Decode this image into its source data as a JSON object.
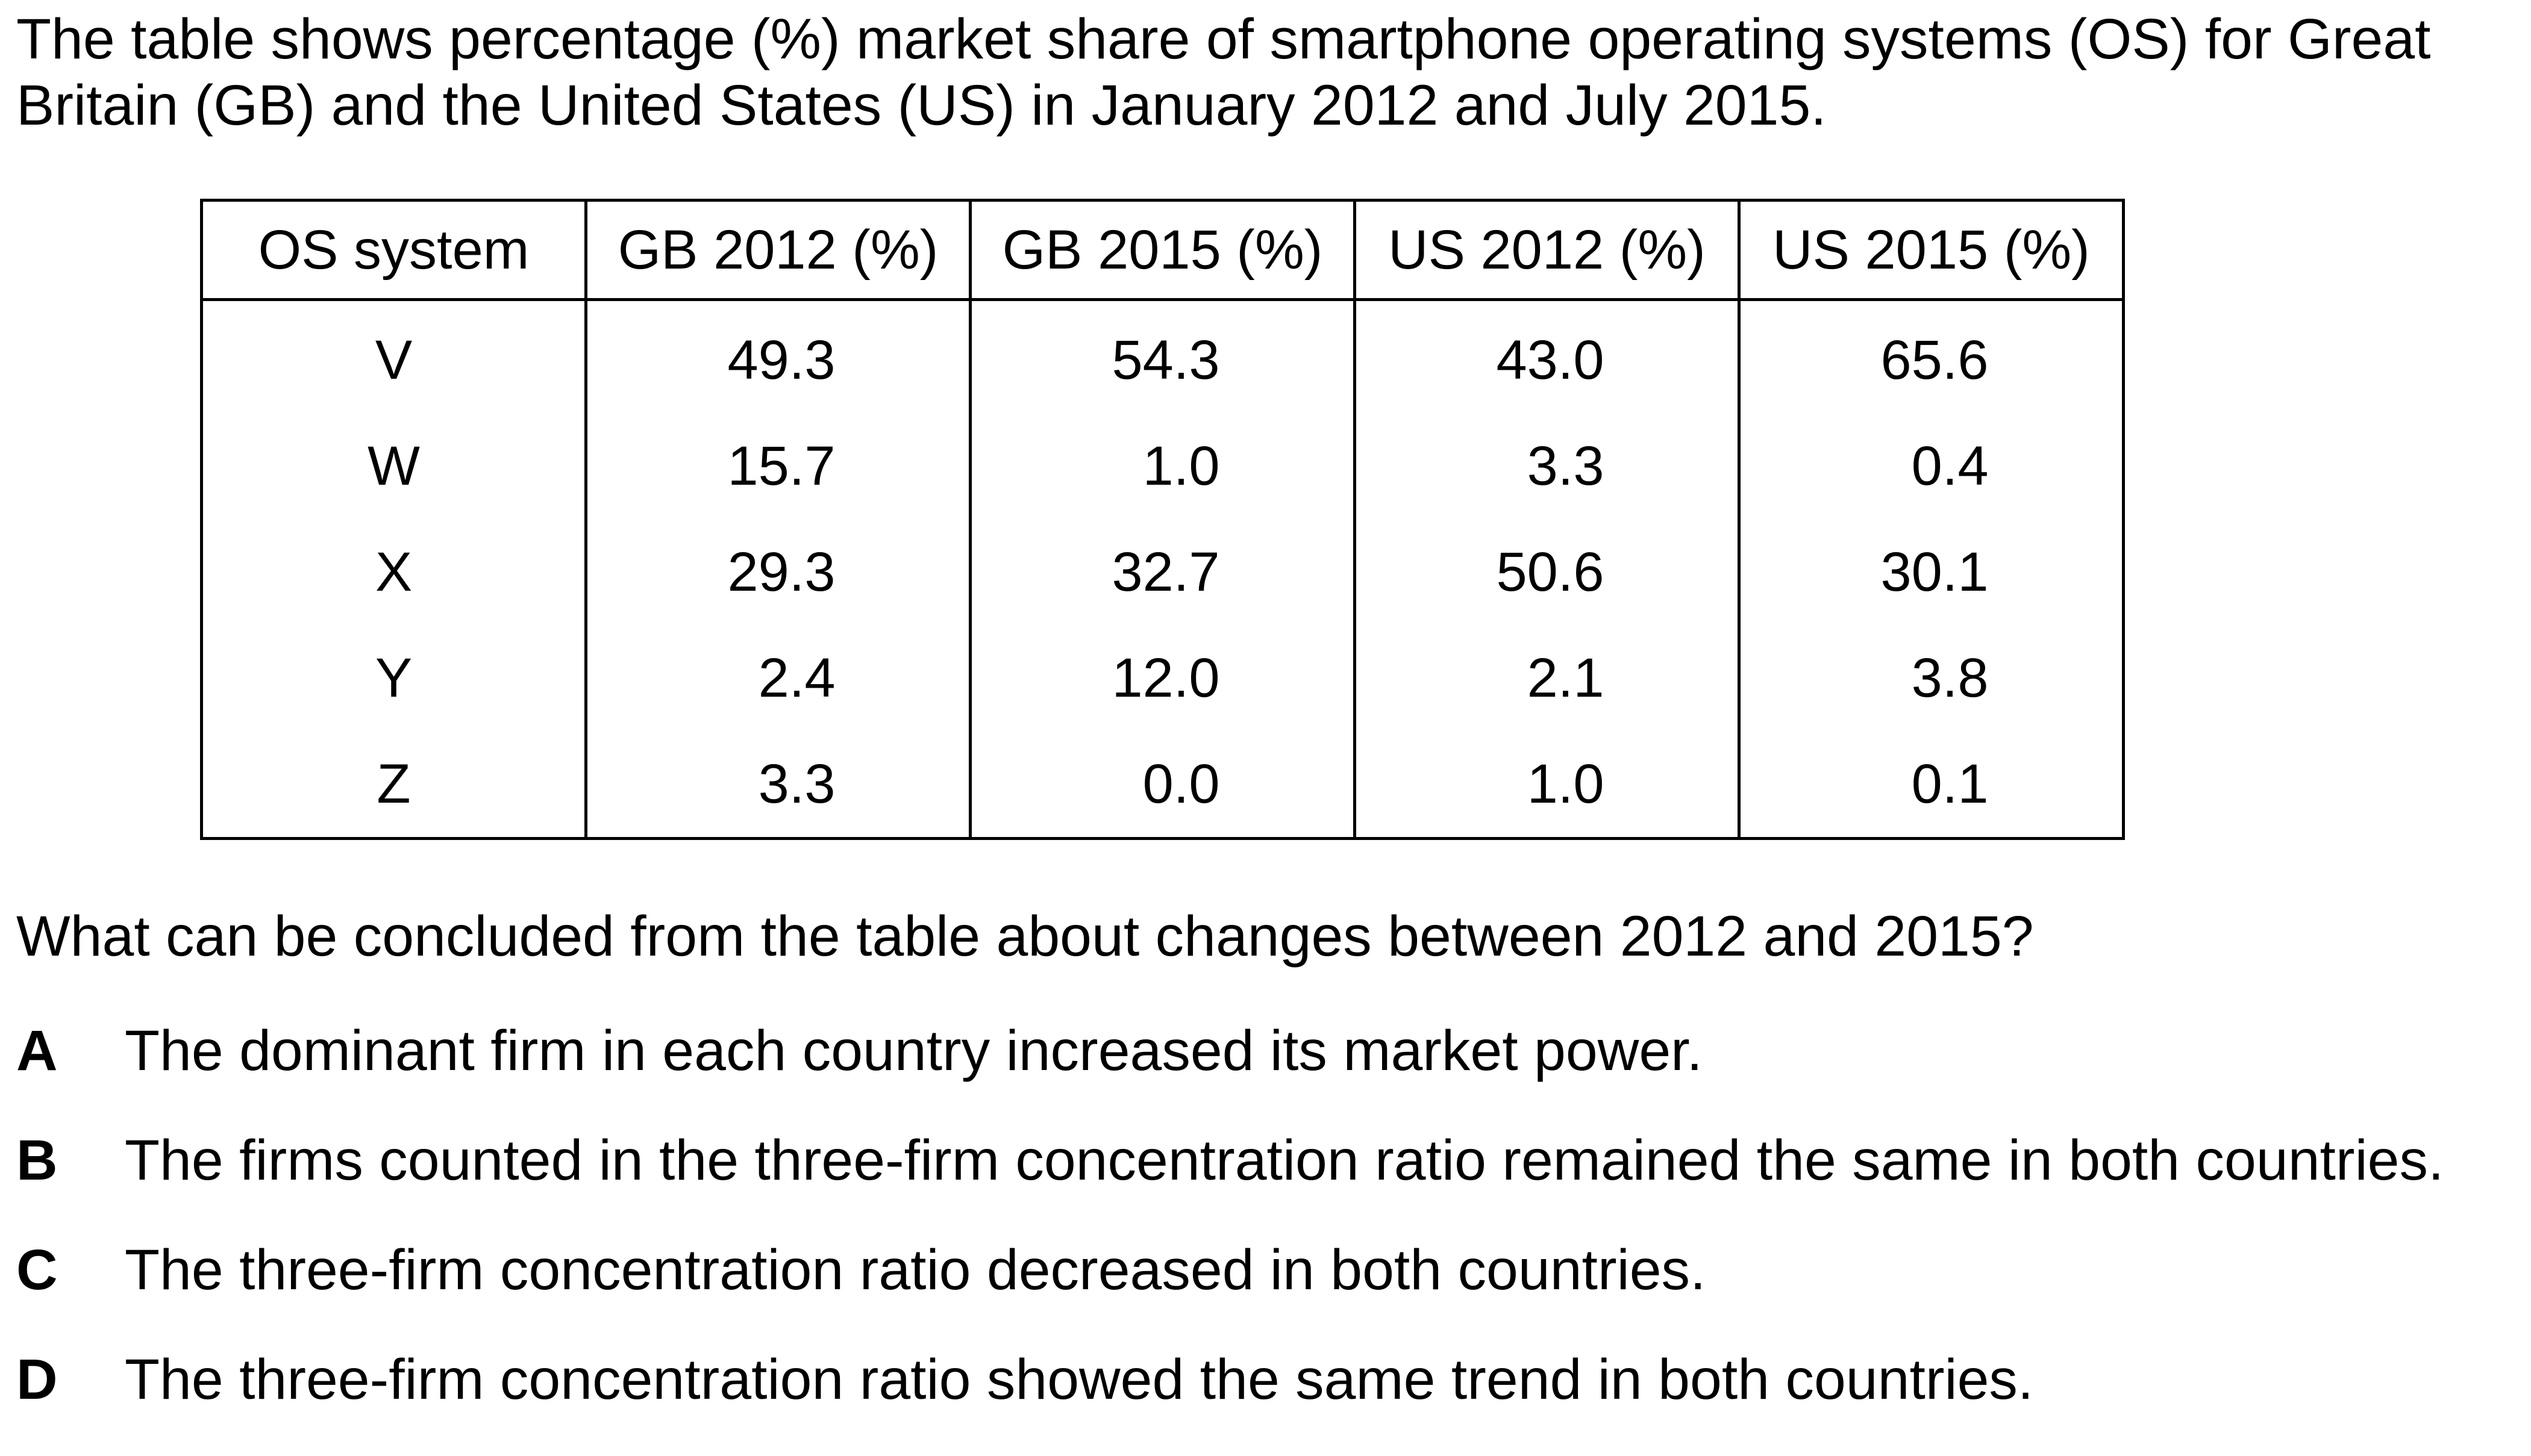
{
  "intro": "The table shows percentage (%) market share of smartphone operating systems (OS) for Great Britain (GB) and the United States (US) in January 2012 and July 2015.",
  "table": {
    "headers": [
      "OS system",
      "GB 2012 (%)",
      "GB 2015 (%)",
      "US 2012 (%)",
      "US 2015 (%)"
    ],
    "rows": [
      {
        "os": "V",
        "values": [
          "49.3",
          "54.3",
          "43.0",
          "65.6"
        ]
      },
      {
        "os": "W",
        "values": [
          "15.7",
          "1.0",
          "3.3",
          "0.4"
        ]
      },
      {
        "os": "X",
        "values": [
          "29.3",
          "32.7",
          "50.6",
          "30.1"
        ]
      },
      {
        "os": "Y",
        "values": [
          "2.4",
          "12.0",
          "2.1",
          "3.8"
        ]
      },
      {
        "os": "Z",
        "values": [
          "3.3",
          "0.0",
          "1.0",
          "0.1"
        ]
      }
    ]
  },
  "question": "What can be concluded from the table about changes between 2012 and 2015?",
  "options": [
    {
      "letter": "A",
      "text": "The dominant firm in each country increased its market power."
    },
    {
      "letter": "B",
      "text": "The firms counted in the three-firm concentration ratio remained the same in both countries."
    },
    {
      "letter": "C",
      "text": "The three-firm concentration ratio decreased in both countries."
    },
    {
      "letter": "D",
      "text": "The three-firm concentration ratio showed the same trend in both countries."
    }
  ]
}
